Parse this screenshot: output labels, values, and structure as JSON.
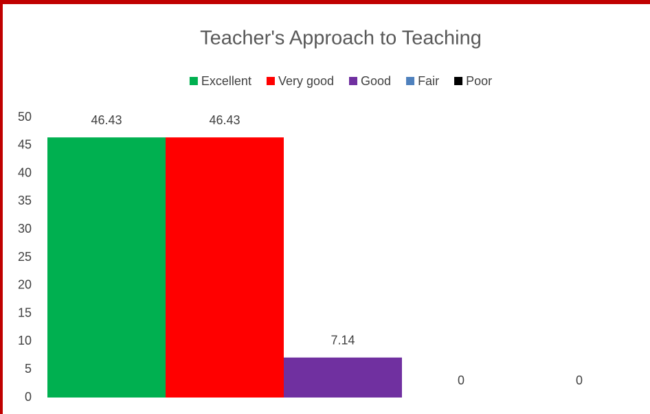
{
  "chart_data": {
    "type": "bar",
    "title": "Teacher's Approach to Teaching",
    "categories": [
      null
    ],
    "series": [
      {
        "name": "Excellent",
        "color": "#00b050",
        "values": [
          46.43
        ]
      },
      {
        "name": "Very good",
        "color": "#ff0000",
        "values": [
          46.43
        ]
      },
      {
        "name": "Good",
        "color": "#7030a0",
        "values": [
          7.14
        ]
      },
      {
        "name": "Fair",
        "color": "#4f81bd",
        "values": [
          0
        ]
      },
      {
        "name": "Poor",
        "color": "#000000",
        "values": [
          0
        ]
      }
    ],
    "ylim": [
      0,
      50
    ],
    "yticks": [
      0,
      5,
      10,
      15,
      20,
      25,
      30,
      35,
      40,
      45,
      50
    ],
    "grid": false,
    "legend": "top"
  }
}
